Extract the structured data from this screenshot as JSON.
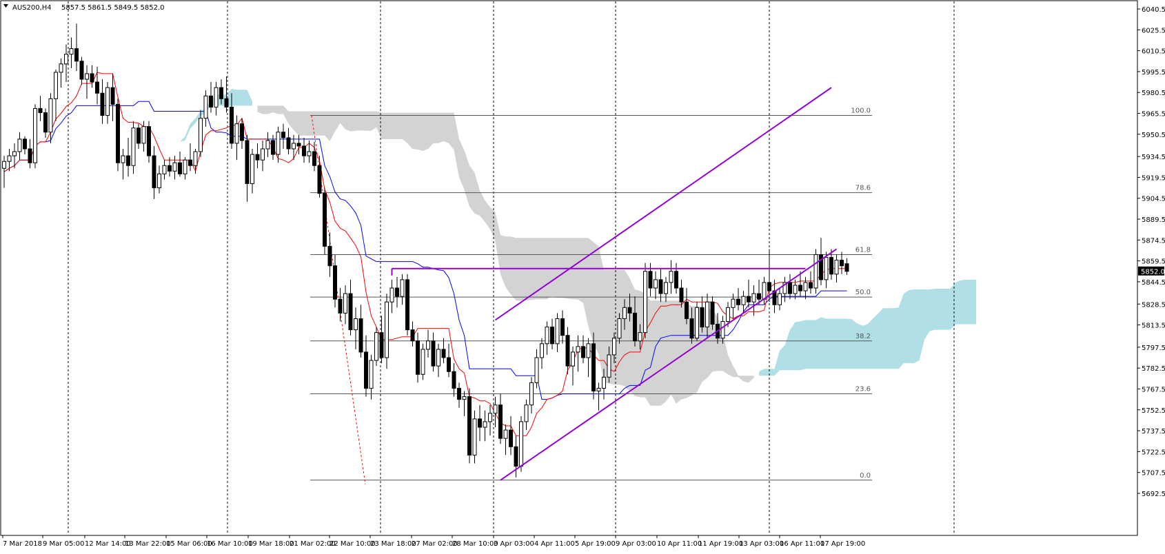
{
  "header": {
    "symbol_label": "AUS200,H4",
    "ohlc_text": "5857.5 5861.5 5849.5 5852.0"
  },
  "chart_data": {
    "type": "candlestick",
    "symbol": "AUS200",
    "timeframe": "H4",
    "ohlc": {
      "open": 5857.5,
      "high": 5861.5,
      "low": 5849.5,
      "close": 5852.0
    },
    "current_price": "5852.0",
    "ylim": [
      5692.0,
      6040.0
    ],
    "y_ticks": [
      "6040.5",
      "6025.5",
      "6010.5",
      "5995.5",
      "5980.5",
      "5965.5",
      "5950.5",
      "5934.5",
      "5919.5",
      "5904.5",
      "5889.5",
      "5874.5",
      "5859.5",
      "5844.5",
      "5828.5",
      "5813.5",
      "5797.5",
      "5782.5",
      "5767.5",
      "5752.5",
      "5737.5",
      "5722.5",
      "5707.5",
      "5692.5"
    ],
    "x_ticks": [
      "7 Mar 2018",
      "9 Mar 05:00",
      "12 Mar 14:00",
      "13 Mar 22:00",
      "15 Mar 06:00",
      "16 Mar 10:00",
      "19 Mar 18:00",
      "21 Mar 02:00",
      "22 Mar 10:00",
      "23 Mar 18:00",
      "27 Mar 02:00",
      "28 Mar 10:00",
      "3 Apr 03:00",
      "4 Apr 11:00",
      "5 Apr 19:00",
      "9 Apr 03:00",
      "10 Apr 11:00",
      "11 Apr 19:00",
      "13 Apr 03:00",
      "16 Apr 11:00",
      "17 Apr 19:00"
    ],
    "fibonacci": [
      {
        "level": "100.0",
        "price": 5964.0
      },
      {
        "level": "78.6",
        "price": 5908.5
      },
      {
        "level": "61.8",
        "price": 5864.0
      },
      {
        "level": "50.0",
        "price": 5833.5
      },
      {
        "level": "38.2",
        "price": 5802.0
      },
      {
        "level": "23.6",
        "price": 5764.0
      },
      {
        "level": "0.0",
        "price": 5702.0
      }
    ],
    "channel": {
      "upper": {
        "from": [
          95,
          5817
        ],
        "to": [
          160,
          5984
        ]
      },
      "lower": {
        "from": [
          96,
          5702
        ],
        "to": [
          161,
          5868
        ]
      }
    },
    "horizontal_line": {
      "from_index": 75,
      "to_index": 155,
      "price": 5854
    },
    "candles": [
      [
        5926,
        5935,
        5912,
        5931
      ],
      [
        5931,
        5940,
        5924,
        5935
      ],
      [
        5935,
        5944,
        5926,
        5938
      ],
      [
        5938,
        5952,
        5932,
        5947
      ],
      [
        5947,
        5949,
        5936,
        5940
      ],
      [
        5940,
        5947,
        5926,
        5930
      ],
      [
        5930,
        5972,
        5926,
        5969
      ],
      [
        5969,
        5978,
        5960,
        5966
      ],
      [
        5966,
        5969,
        5948,
        5952
      ],
      [
        5952,
        5980,
        5944,
        5976
      ],
      [
        5976,
        5997,
        5960,
        5995
      ],
      [
        5995,
        6005,
        5984,
        6001
      ],
      [
        6001,
        6015,
        5988,
        6008
      ],
      [
        6008,
        6020,
        5998,
        6012
      ],
      [
        6012,
        6030,
        5996,
        6003
      ],
      [
        6003,
        6006,
        5986,
        5990
      ],
      [
        5990,
        6000,
        5976,
        5994
      ],
      [
        5994,
        6000,
        5984,
        5988
      ],
      [
        5988,
        5999,
        5972,
        5980
      ],
      [
        5980,
        5990,
        5958,
        5964
      ],
      [
        5964,
        5988,
        5958,
        5984
      ],
      [
        5984,
        5994,
        5960,
        5972
      ],
      [
        5972,
        5976,
        5924,
        5930
      ],
      [
        5930,
        5940,
        5918,
        5935
      ],
      [
        5935,
        5948,
        5920,
        5928
      ],
      [
        5928,
        5960,
        5922,
        5955
      ],
      [
        5955,
        5958,
        5940,
        5944
      ],
      [
        5944,
        5960,
        5938,
        5956
      ],
      [
        5956,
        5960,
        5930,
        5935
      ],
      [
        5935,
        5942,
        5904,
        5912
      ],
      [
        5912,
        5928,
        5908,
        5922
      ],
      [
        5922,
        5932,
        5918,
        5928
      ],
      [
        5928,
        5934,
        5920,
        5924
      ],
      [
        5924,
        5935,
        5918,
        5930
      ],
      [
        5930,
        5938,
        5920,
        5922
      ],
      [
        5922,
        5934,
        5918,
        5932
      ],
      [
        5932,
        5944,
        5924,
        5928
      ],
      [
        5928,
        5940,
        5922,
        5938
      ],
      [
        5938,
        5968,
        5934,
        5962
      ],
      [
        5962,
        5982,
        5956,
        5978
      ],
      [
        5978,
        5988,
        5966,
        5970
      ],
      [
        5970,
        5988,
        5964,
        5984
      ],
      [
        5984,
        5990,
        5972,
        5976
      ],
      [
        5976,
        5992,
        5966,
        5970
      ],
      [
        5970,
        5980,
        5940,
        5944
      ],
      [
        5944,
        5964,
        5932,
        5958
      ],
      [
        5958,
        5962,
        5940,
        5946
      ],
      [
        5946,
        5950,
        5902,
        5915
      ],
      [
        5915,
        5940,
        5908,
        5936
      ],
      [
        5936,
        5944,
        5926,
        5932
      ],
      [
        5932,
        5946,
        5924,
        5940
      ],
      [
        5940,
        5952,
        5934,
        5946
      ],
      [
        5946,
        5950,
        5932,
        5936
      ],
      [
        5936,
        5956,
        5930,
        5952
      ],
      [
        5952,
        5958,
        5940,
        5948
      ],
      [
        5948,
        5955,
        5936,
        5940
      ],
      [
        5940,
        5950,
        5932,
        5944
      ],
      [
        5944,
        5950,
        5936,
        5942
      ],
      [
        5942,
        5948,
        5930,
        5935
      ],
      [
        5935,
        5946,
        5930,
        5938
      ],
      [
        5938,
        5945,
        5924,
        5928
      ],
      [
        5928,
        5935,
        5905,
        5908
      ],
      [
        5908,
        5912,
        5864,
        5870
      ],
      [
        5870,
        5880,
        5848,
        5856
      ],
      [
        5856,
        5864,
        5826,
        5832
      ],
      [
        5832,
        5840,
        5816,
        5822
      ],
      [
        5822,
        5842,
        5814,
        5836
      ],
      [
        5836,
        5846,
        5806,
        5810
      ],
      [
        5810,
        5826,
        5796,
        5818
      ],
      [
        5818,
        5828,
        5790,
        5794
      ],
      [
        5794,
        5806,
        5762,
        5768
      ],
      [
        5768,
        5792,
        5760,
        5788
      ],
      [
        5788,
        5812,
        5784,
        5808
      ],
      [
        5808,
        5820,
        5786,
        5790
      ],
      [
        5790,
        5836,
        5782,
        5830
      ],
      [
        5830,
        5846,
        5822,
        5840
      ],
      [
        5840,
        5848,
        5826,
        5834
      ],
      [
        5834,
        5850,
        5828,
        5846
      ],
      [
        5846,
        5850,
        5806,
        5810
      ],
      [
        5810,
        5816,
        5798,
        5802
      ],
      [
        5802,
        5808,
        5772,
        5778
      ],
      [
        5778,
        5800,
        5774,
        5796
      ],
      [
        5796,
        5810,
        5790,
        5802
      ],
      [
        5802,
        5808,
        5780,
        5784
      ],
      [
        5784,
        5800,
        5776,
        5796
      ],
      [
        5796,
        5804,
        5786,
        5790
      ],
      [
        5790,
        5800,
        5776,
        5780
      ],
      [
        5780,
        5786,
        5762,
        5768
      ],
      [
        5768,
        5772,
        5754,
        5760
      ],
      [
        5760,
        5766,
        5748,
        5762
      ],
      [
        5762,
        5768,
        5714,
        5720
      ],
      [
        5720,
        5752,
        5714,
        5746
      ],
      [
        5746,
        5756,
        5730,
        5740
      ],
      [
        5740,
        5752,
        5730,
        5744
      ],
      [
        5744,
        5756,
        5734,
        5750
      ],
      [
        5750,
        5762,
        5740,
        5756
      ],
      [
        5756,
        5764,
        5728,
        5732
      ],
      [
        5732,
        5742,
        5720,
        5738
      ],
      [
        5738,
        5748,
        5720,
        5726
      ],
      [
        5726,
        5734,
        5704,
        5712
      ],
      [
        5712,
        5748,
        5708,
        5744
      ],
      [
        5744,
        5760,
        5738,
        5756
      ],
      [
        5756,
        5776,
        5750,
        5772
      ],
      [
        5772,
        5796,
        5768,
        5790
      ],
      [
        5790,
        5804,
        5782,
        5800
      ],
      [
        5800,
        5816,
        5792,
        5812
      ],
      [
        5812,
        5818,
        5796,
        5800
      ],
      [
        5800,
        5822,
        5794,
        5818
      ],
      [
        5818,
        5824,
        5800,
        5806
      ],
      [
        5806,
        5812,
        5778,
        5784
      ],
      [
        5784,
        5798,
        5770,
        5794
      ],
      [
        5794,
        5806,
        5780,
        5798
      ],
      [
        5798,
        5806,
        5786,
        5790
      ],
      [
        5790,
        5804,
        5776,
        5800
      ],
      [
        5800,
        5808,
        5760,
        5766
      ],
      [
        5766,
        5772,
        5752,
        5768
      ],
      [
        5768,
        5782,
        5760,
        5776
      ],
      [
        5776,
        5798,
        5772,
        5792
      ],
      [
        5792,
        5808,
        5786,
        5804
      ],
      [
        5804,
        5822,
        5800,
        5818
      ],
      [
        5818,
        5832,
        5810,
        5826
      ],
      [
        5826,
        5836,
        5816,
        5822
      ],
      [
        5822,
        5834,
        5798,
        5802
      ],
      [
        5802,
        5814,
        5796,
        5808
      ],
      [
        5808,
        5858,
        5804,
        5852
      ],
      [
        5852,
        5858,
        5834,
        5840
      ],
      [
        5840,
        5852,
        5832,
        5846
      ],
      [
        5846,
        5854,
        5830,
        5836
      ],
      [
        5836,
        5848,
        5830,
        5844
      ],
      [
        5844,
        5860,
        5836,
        5852
      ],
      [
        5852,
        5858,
        5836,
        5840
      ],
      [
        5840,
        5846,
        5826,
        5830
      ],
      [
        5830,
        5840,
        5814,
        5818
      ],
      [
        5818,
        5826,
        5800,
        5804
      ],
      [
        5804,
        5830,
        5802,
        5826
      ],
      [
        5826,
        5834,
        5808,
        5812
      ],
      [
        5812,
        5836,
        5804,
        5830
      ],
      [
        5830,
        5834,
        5810,
        5814
      ],
      [
        5814,
        5822,
        5800,
        5804
      ],
      [
        5804,
        5820,
        5800,
        5816
      ],
      [
        5816,
        5830,
        5812,
        5826
      ],
      [
        5826,
        5836,
        5818,
        5832
      ],
      [
        5832,
        5840,
        5824,
        5828
      ],
      [
        5828,
        5838,
        5822,
        5834
      ],
      [
        5834,
        5846,
        5826,
        5830
      ],
      [
        5830,
        5842,
        5820,
        5836
      ],
      [
        5836,
        5846,
        5828,
        5832
      ],
      [
        5832,
        5848,
        5828,
        5844
      ],
      [
        5844,
        5868,
        5830,
        5838
      ],
      [
        5838,
        5846,
        5822,
        5828
      ],
      [
        5828,
        5840,
        5824,
        5836
      ],
      [
        5836,
        5848,
        5830,
        5844
      ],
      [
        5844,
        5850,
        5832,
        5836
      ],
      [
        5836,
        5846,
        5832,
        5842
      ],
      [
        5842,
        5852,
        5834,
        5838
      ],
      [
        5838,
        5848,
        5832,
        5844
      ],
      [
        5844,
        5852,
        5836,
        5840
      ],
      [
        5840,
        5868,
        5836,
        5864
      ],
      [
        5864,
        5876,
        5842,
        5846
      ],
      [
        5846,
        5866,
        5840,
        5862
      ],
      [
        5862,
        5868,
        5846,
        5850
      ],
      [
        5850,
        5864,
        5844,
        5860
      ],
      [
        5860,
        5866,
        5850,
        5856
      ],
      [
        5857.5,
        5861.5,
        5849.5,
        5852.0
      ]
    ]
  }
}
